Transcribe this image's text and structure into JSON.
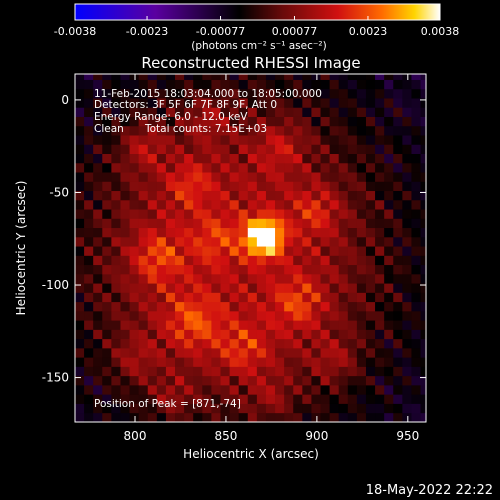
{
  "chart_data": {
    "type": "heatmap",
    "title": "Reconstructed RHESSI Image",
    "xlabel": "Heliocentric X (arcsec)",
    "ylabel": "Heliocentric Y (arcsec)",
    "xlim": [
      767,
      960
    ],
    "ylim": [
      -174,
      14
    ],
    "x_ticks": [
      800,
      850,
      900,
      950
    ],
    "y_ticks": [
      0,
      -50,
      -100,
      -150
    ],
    "colorbar": {
      "ticks": [
        "-0.0038",
        "-0.0023",
        "-0.00077",
        "0.00077",
        "0.0023",
        "0.0038"
      ],
      "values": [
        -0.0038,
        -0.0023,
        -0.00077,
        0.00077,
        0.0023,
        0.0038
      ],
      "range": [
        -0.0038,
        0.0038
      ],
      "units": "(photons cm⁻² s⁻¹ asec⁻²)",
      "colormap": [
        "#0000ff",
        "#5a00a0",
        "#000000",
        "#6a0a0a",
        "#d01010",
        "#ff6a00",
        "#ffd400",
        "#ffffff"
      ]
    },
    "peak": {
      "x": 871,
      "y": -74,
      "value": 0.0038
    },
    "background_level": 0.0012,
    "annotations": {
      "time_range": "11-Feb-2015 18:03:04.000 to 18:05:00.000",
      "detectors": "Detectors: 3F 5F 6F 7F 8F 9F, Att 0",
      "energy": "Energy Range: 6.0 - 12.0 keV",
      "method": "Clean",
      "counts": "Total counts: 7.15E+03",
      "peak_position": "Position of Peak = [871,-74]"
    }
  },
  "footer": {
    "timestamp": "18-May-2022 22:22"
  }
}
